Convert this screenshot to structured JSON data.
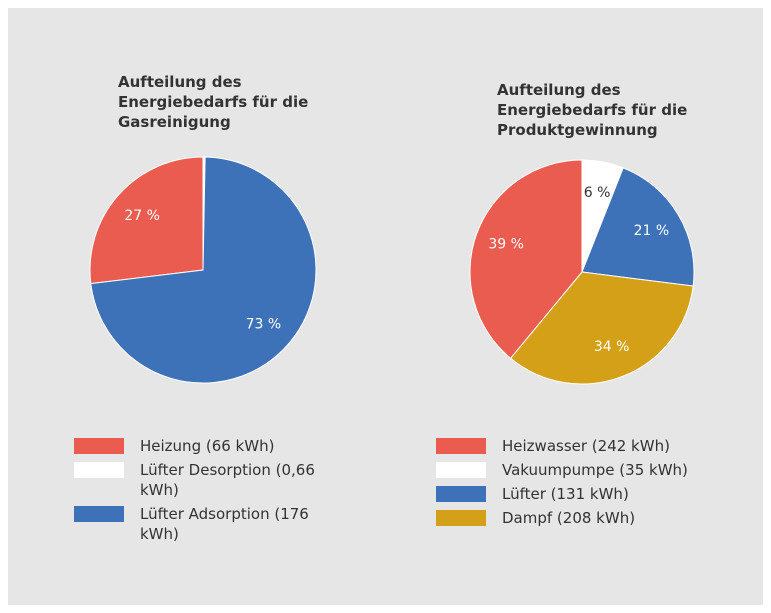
{
  "chart_data": [
    {
      "type": "pie",
      "title": "Aufteilung des Energiebedarfs für die Gasreinigung",
      "categories": [
        "Heizung (66 kWh)",
        "Lüfter Desorption (0,66 kWh)",
        "Lüfter Adsorption (176 kWh)"
      ],
      "values": [
        27,
        0.3,
        73
      ],
      "value_labels": [
        "27 %",
        null,
        "73 %"
      ],
      "colors": [
        "#e95c4f",
        "#ffffff",
        "#3d72b8"
      ]
    },
    {
      "type": "pie",
      "title": "Aufteilung des Energiebedarfs für die Produktgewinnung",
      "categories": [
        "Heizwasser (242 kWh)",
        "Vakuumpumpe (35 kWh)",
        "Lüfter (131 kWh)",
        "Dampf (208 kWh)"
      ],
      "values": [
        39,
        6,
        21,
        34
      ],
      "value_labels": [
        "39 %",
        "6 %",
        "21 %",
        "34 %"
      ],
      "colors": [
        "#e95c4f",
        "#ffffff",
        "#3d72b8",
        "#d4a017"
      ]
    }
  ]
}
